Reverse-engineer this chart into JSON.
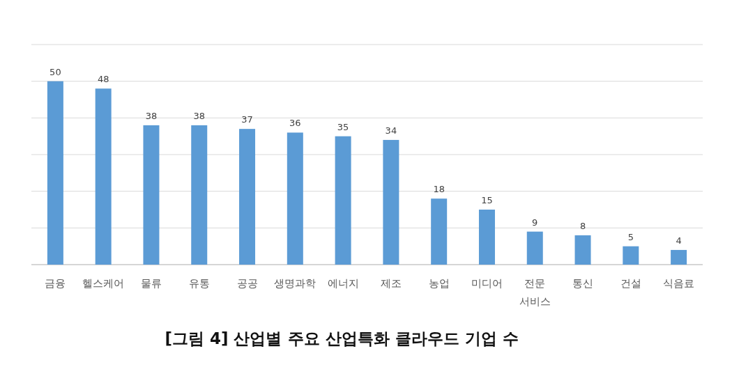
{
  "chart_data": {
    "type": "bar",
    "title": "[그림 4] 산업별 주요 산업특화 클라우드 기업 수",
    "categories": [
      "금융",
      "헬스케어",
      "물류",
      "유통",
      "공공",
      "생명과학",
      "에너지",
      "제조",
      "농업",
      "미디어",
      "전문\n서비스",
      "통신",
      "건설",
      "식음료"
    ],
    "values": [
      50,
      48,
      38,
      38,
      37,
      36,
      35,
      34,
      18,
      15,
      9,
      8,
      5,
      4
    ],
    "color": "#5b9bd5",
    "data_labels": true,
    "ylim": [
      0,
      60
    ],
    "yticks": [
      {
        "value": 0,
        "label": null
      },
      {
        "value": 10,
        "label": null
      },
      {
        "value": 20,
        "label": null
      },
      {
        "value": 30,
        "label": null
      },
      {
        "value": 40,
        "label": null
      },
      {
        "value": 50,
        "label": null
      },
      {
        "value": 60,
        "label": null
      }
    ],
    "grid": "y",
    "tick_labels": "x"
  }
}
